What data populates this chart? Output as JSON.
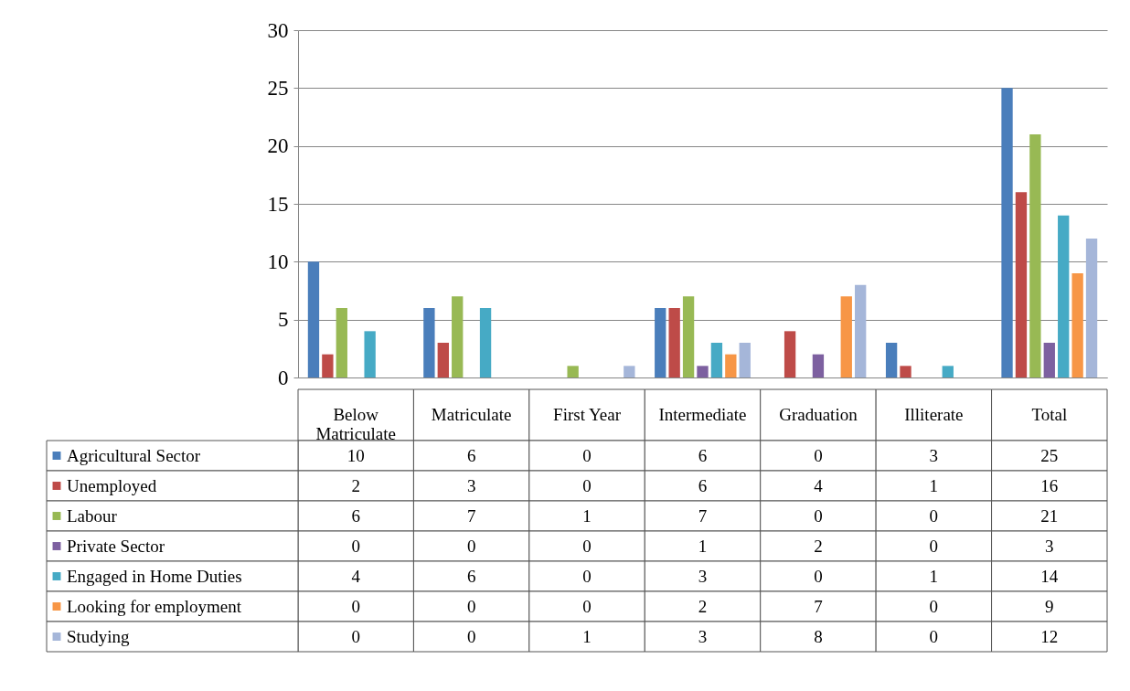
{
  "chart_data": {
    "type": "bar",
    "categories": [
      "Below Matriculate",
      "Matriculate",
      "First Year",
      "Intermediate",
      "Graduation",
      "Illiterate",
      "Total"
    ],
    "series": [
      {
        "name": "Agricultural Sector",
        "color": "#4a7ebb",
        "values": [
          10,
          6,
          0,
          6,
          0,
          3,
          25
        ]
      },
      {
        "name": "Unemployed",
        "color": "#be4b48",
        "values": [
          2,
          3,
          0,
          6,
          4,
          1,
          16
        ]
      },
      {
        "name": "Labour",
        "color": "#98b954",
        "values": [
          6,
          7,
          1,
          7,
          0,
          0,
          21
        ]
      },
      {
        "name": "Private Sector",
        "color": "#7d60a0",
        "values": [
          0,
          0,
          0,
          1,
          2,
          0,
          3
        ]
      },
      {
        "name": "Engaged in Home Duties",
        "color": "#46aac5",
        "values": [
          4,
          6,
          0,
          3,
          0,
          1,
          14
        ]
      },
      {
        "name": "Looking for employment",
        "color": "#f79646",
        "values": [
          0,
          0,
          0,
          2,
          7,
          0,
          9
        ]
      },
      {
        "name": "Studying",
        "color": "#a5b6d9",
        "values": [
          0,
          0,
          1,
          3,
          8,
          0,
          12
        ]
      }
    ],
    "ylim": [
      0,
      30
    ],
    "yticks": [
      0,
      5,
      10,
      15,
      20,
      25,
      30
    ],
    "grid": "y",
    "legend": "bottom",
    "data_labels": true
  }
}
